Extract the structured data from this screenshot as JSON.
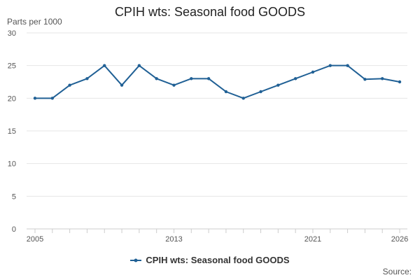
{
  "chart_data": {
    "type": "line",
    "title": "CPIH wts: Seasonal food GOODS",
    "ylabel": "Parts per 1000",
    "xlabel": "",
    "source_label": "Source:",
    "x": [
      2005,
      2006,
      2007,
      2008,
      2009,
      2010,
      2011,
      2012,
      2013,
      2014,
      2015,
      2016,
      2017,
      2018,
      2019,
      2020,
      2021,
      2022,
      2023,
      2024,
      2025,
      2026
    ],
    "x_tick_labels": [
      "2005",
      "2013",
      "2021",
      "2026"
    ],
    "x_tick_values": [
      2005,
      2013,
      2021,
      2026
    ],
    "xlim": [
      2005,
      2026
    ],
    "ylim": [
      0,
      30
    ],
    "y_ticks": [
      0,
      5,
      10,
      15,
      20,
      25,
      30
    ],
    "series": [
      {
        "name": "CPIH wts: Seasonal food GOODS",
        "color": "#206095",
        "values": [
          20,
          20,
          22,
          23,
          25,
          22,
          25,
          23,
          22,
          23,
          23,
          21,
          20,
          21,
          22,
          23,
          24,
          25,
          25,
          22.9,
          23,
          22.5
        ]
      }
    ],
    "grid": true,
    "legend_position": "bottom"
  }
}
